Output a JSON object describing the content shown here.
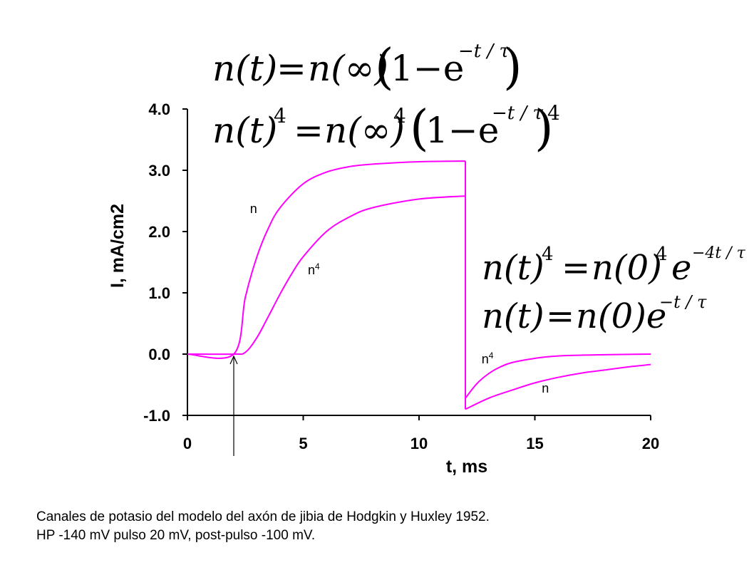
{
  "chart_data": {
    "type": "line",
    "title": "",
    "xlabel": "t, ms",
    "ylabel": "I, mA/cm2",
    "xlim": [
      0,
      20
    ],
    "ylim": [
      -1.0,
      4.0
    ],
    "x_ticks": [
      "0",
      "5",
      "10",
      "15",
      "20"
    ],
    "y_ticks": [
      "4.0",
      "3.0",
      "2.0",
      "1.0",
      "0.0",
      "-1.0"
    ],
    "grid": false,
    "line_color": "#ff00ff",
    "stimulus_marker_x": 2,
    "series": [
      {
        "name": "n",
        "points": [
          [
            0,
            0
          ],
          [
            2,
            0
          ],
          [
            2.5,
            0.93
          ],
          [
            3,
            1.59
          ],
          [
            3.5,
            2.06
          ],
          [
            4,
            2.39
          ],
          [
            5,
            2.78
          ],
          [
            6,
            2.97
          ],
          [
            7,
            3.06
          ],
          [
            8,
            3.1
          ],
          [
            10,
            3.14
          ],
          [
            12,
            3.15
          ],
          [
            12,
            -0.9
          ],
          [
            13,
            -0.72
          ],
          [
            14,
            -0.59
          ],
          [
            15,
            -0.47
          ],
          [
            16,
            -0.38
          ],
          [
            17,
            -0.31
          ],
          [
            18,
            -0.26
          ],
          [
            19,
            -0.21
          ],
          [
            20,
            -0.17
          ]
        ]
      },
      {
        "name": "n4",
        "points": [
          [
            0,
            0
          ],
          [
            2,
            0
          ],
          [
            2.5,
            0.03
          ],
          [
            3,
            0.27
          ],
          [
            3.5,
            0.62
          ],
          [
            4,
            0.98
          ],
          [
            4.5,
            1.31
          ],
          [
            5,
            1.59
          ],
          [
            6,
            2.0
          ],
          [
            7,
            2.24
          ],
          [
            8,
            2.39
          ],
          [
            10,
            2.53
          ],
          [
            12,
            2.58
          ],
          [
            12,
            -0.72
          ],
          [
            12.5,
            -0.48
          ],
          [
            13,
            -0.32
          ],
          [
            13.5,
            -0.21
          ],
          [
            14,
            -0.14
          ],
          [
            15,
            -0.07
          ],
          [
            16,
            -0.03
          ],
          [
            18,
            -0.01
          ],
          [
            20,
            0.0
          ]
        ]
      }
    ],
    "curve_labels": [
      {
        "text": "n",
        "x": 2.7,
        "y": 2.3
      },
      {
        "text": "n",
        "sup": "4",
        "x": 5.2,
        "y": 1.3
      },
      {
        "text": "n",
        "sup": "4",
        "x": 12.7,
        "y": -0.15
      },
      {
        "text": "n",
        "x": 15.3,
        "y": -0.63
      }
    ]
  },
  "equations": {
    "eq1": {
      "lhs": "n(t)",
      "rhs_a": "n(∞)",
      "rhs_b": "1−e",
      "exponent": "−t / τ"
    },
    "eq2": {
      "lhs": "n(t)",
      "lhs_pow": "4",
      "rhs_a": "n(∞)",
      "rhs_a_pow": "4",
      "rhs_b": "1−e",
      "exponent": "−t / τ",
      "outer_pow": "4"
    },
    "eq3": {
      "lhs": "n(t)",
      "lhs_pow": "4",
      "rhs_a": "n(0)",
      "rhs_a_pow": "4",
      "rhs_b": "e",
      "exponent": "−4t / τ"
    },
    "eq4": {
      "lhs": "n(t)",
      "rhs": "n(0)e",
      "exponent": "−t / τ"
    }
  },
  "caption": {
    "line1": "Canales de potasio del modelo del axón de jibia de Hodgkin y Huxley 1952.",
    "line2": "HP -140 mV pulso 20 mV, post-pulso -100 mV."
  }
}
